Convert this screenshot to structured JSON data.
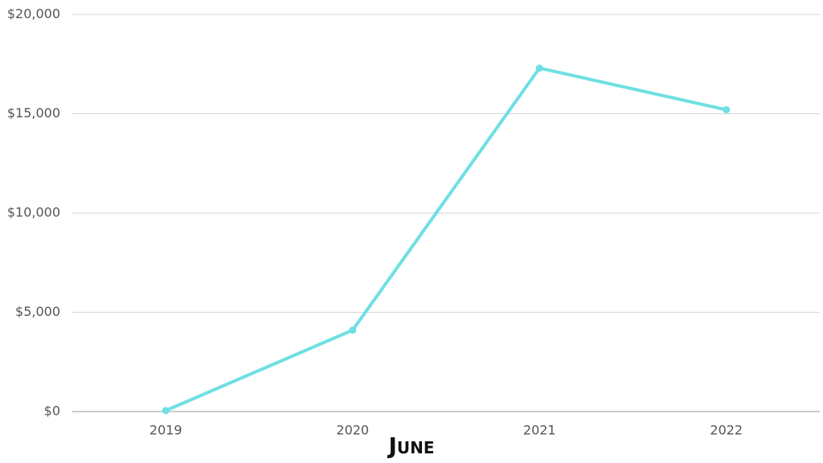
{
  "chart_data": {
    "type": "line",
    "title": "June",
    "categories": [
      "2019",
      "2020",
      "2021",
      "2022"
    ],
    "values": [
      50,
      4100,
      17300,
      15200
    ],
    "color": "#6ee0e3",
    "ylim": [
      0,
      20000
    ],
    "yticks": [
      {
        "value": 0,
        "label": "$0"
      },
      {
        "value": 5000,
        "label": "$5,000"
      },
      {
        "value": 10000,
        "label": "$10,000"
      },
      {
        "value": 15000,
        "label": "$15,000"
      },
      {
        "value": 20000,
        "label": "$20,000"
      }
    ],
    "grid": true
  }
}
